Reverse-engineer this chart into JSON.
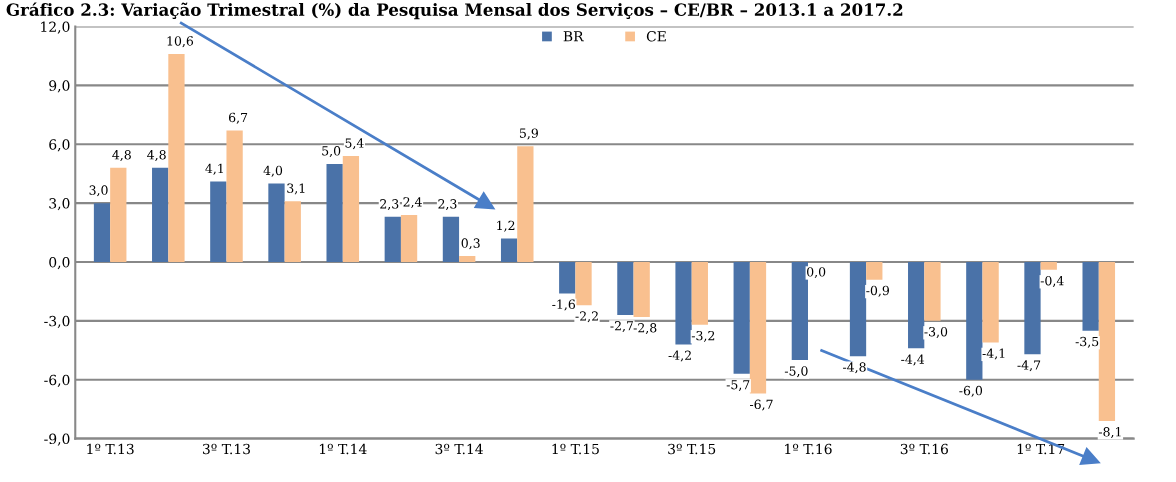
{
  "chart_data": {
    "type": "bar",
    "title": "Gráfico 2.3: Variação Trimestral (%) da Pesquisa Mensal dos Serviços – CE/BR – 2013.1 a 2017.2",
    "categories": [
      "1º T.13",
      null,
      "3º T.13",
      null,
      "1º T.14",
      null,
      "3º T.14",
      null,
      "1º T.15",
      null,
      "3º T.15",
      null,
      "1º T.16",
      null,
      "3º T.16",
      null,
      "1º T.17",
      null
    ],
    "series": [
      {
        "name": "BR",
        "color": "#4a72a8",
        "values": [
          3.0,
          4.8,
          4.1,
          4.0,
          5.0,
          2.3,
          2.3,
          1.2,
          -1.6,
          -2.7,
          -4.2,
          -5.7,
          -5.0,
          -4.8,
          -4.4,
          -6.0,
          -4.7,
          -3.5
        ],
        "value_labels": [
          "3,0",
          "4,8",
          "4,1",
          "4,0",
          "5,0",
          "2,3",
          "2,3",
          "1,2",
          "-1,6",
          "-2,7",
          "-4,2",
          "-5,7",
          "-5,0",
          "-4,8",
          "-4,4",
          "-6,0",
          "-4,7",
          "-3,5"
        ]
      },
      {
        "name": "CE",
        "color": "#f9c08f",
        "values": [
          4.8,
          10.6,
          6.7,
          3.1,
          5.4,
          2.4,
          0.3,
          5.9,
          -2.2,
          -2.8,
          -3.2,
          -6.7,
          0.0,
          -0.9,
          -3.0,
          -4.1,
          -0.4,
          -8.1
        ],
        "value_labels": [
          "4,8",
          "10,6",
          "6,7",
          "3,1",
          "5,4",
          "2,4",
          "0,3",
          "5,9",
          "-2,2",
          "-2,8",
          "-3,2",
          "-6,7",
          "0,0",
          "-0,9",
          "-3,0",
          "-4,1",
          "-0,4",
          "-8,1"
        ]
      }
    ],
    "ylim": [
      -9,
      12
    ],
    "yticks": [
      {
        "value": -9,
        "label": "-9,0"
      },
      {
        "value": -6,
        "label": "-6,0"
      },
      {
        "value": -3,
        "label": "-3,0"
      },
      {
        "value": 0,
        "label": "0,0"
      },
      {
        "value": 3,
        "label": "3,0"
      },
      {
        "value": 6,
        "label": "6,0"
      },
      {
        "value": 9,
        "label": "9,0"
      },
      {
        "value": 12,
        "label": "12,0"
      }
    ],
    "grid": "y",
    "legend": "top"
  }
}
